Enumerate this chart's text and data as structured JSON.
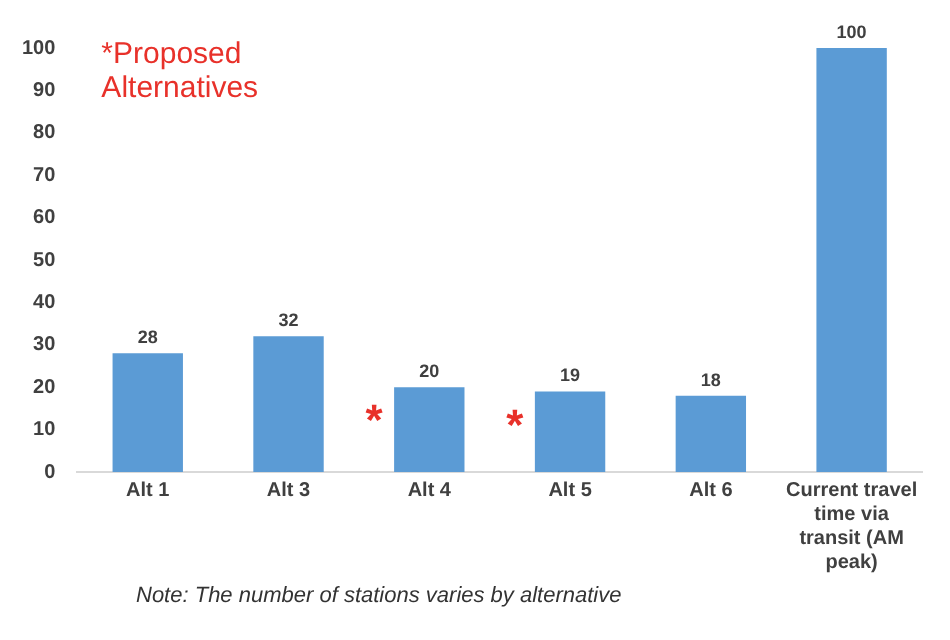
{
  "chart_data": {
    "type": "bar",
    "title": "*Proposed Alternatives",
    "categories": [
      "Alt 1",
      "Alt 3",
      "Alt 4",
      "Alt 5",
      "Alt 6",
      "Current travel time via transit (AM peak)"
    ],
    "values": [
      28,
      32,
      20,
      19,
      18,
      100
    ],
    "color": "#5b9bd5",
    "data_labels": true,
    "ylim": [
      0,
      100
    ],
    "yticks": [
      0,
      10,
      20,
      30,
      40,
      50,
      60,
      70,
      80,
      90,
      100
    ],
    "grid": false,
    "legend": false,
    "annotations": [
      {
        "text": "*",
        "x": "Alt 4",
        "y": 20
      },
      {
        "text": "*",
        "x": "Alt 5",
        "y": 19
      },
      "Note: The number of stations varies by alternative"
    ]
  }
}
